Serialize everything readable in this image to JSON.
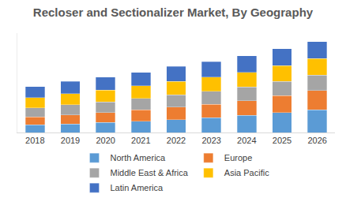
{
  "chart_data": {
    "type": "bar",
    "title": "Recloser and Sectionalizer Market, By Geography",
    "categories": [
      "2018",
      "2019",
      "2020",
      "2021",
      "2022",
      "2023",
      "2024",
      "2025",
      "2026"
    ],
    "series": [
      {
        "name": "North America",
        "color": "#5B9BD5",
        "values": [
          11,
          12,
          14,
          16,
          18,
          21,
          24,
          28,
          32
        ]
      },
      {
        "name": "Europe",
        "color": "#ED7D31",
        "values": [
          11,
          13,
          14,
          16,
          18,
          19,
          21,
          24,
          27
        ]
      },
      {
        "name": "Middle East & Africa",
        "color": "#A5A5A5",
        "values": [
          13,
          14,
          15,
          16,
          17,
          18,
          19,
          20,
          22
        ]
      },
      {
        "name": "Asia Pacific",
        "color": "#FFC000",
        "values": [
          14,
          16,
          17,
          18,
          19,
          20,
          21,
          22,
          23
        ]
      },
      {
        "name": "Latin America",
        "color": "#4472C4",
        "values": [
          16,
          17,
          18,
          19,
          21,
          22,
          23,
          24,
          24
        ]
      }
    ],
    "ylim": [
      0,
      140
    ],
    "yticks": [],
    "stacked": true,
    "grid": false,
    "legend": "bottom",
    "tick_labels": "x"
  }
}
